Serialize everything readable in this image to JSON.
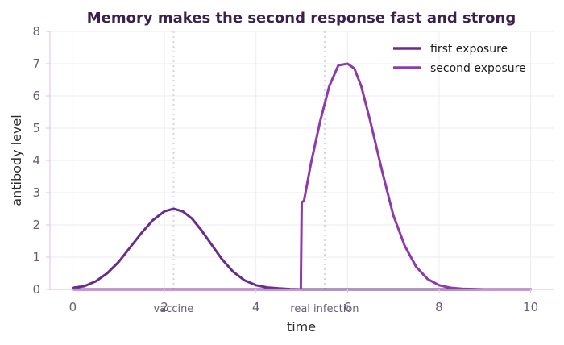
{
  "chart_data": {
    "type": "line",
    "title": "Memory makes the second response fast and strong",
    "xlabel": "time",
    "ylabel": "antibody level",
    "xlim": [
      -0.5,
      10.5
    ],
    "ylim": [
      0,
      8
    ],
    "xticks": [
      0,
      2,
      4,
      6,
      8,
      10
    ],
    "yticks": [
      0,
      1,
      2,
      3,
      4,
      5,
      6,
      7,
      8
    ],
    "grid": true,
    "legend_position": "top-right",
    "annotations": [
      {
        "label": "vaccine",
        "x": 2.2
      },
      {
        "label": "real infection",
        "x": 5.5
      }
    ],
    "series": [
      {
        "name": "first exposure",
        "color": "#6a2c8a",
        "x": [
          0,
          0.25,
          0.5,
          0.75,
          1.0,
          1.25,
          1.5,
          1.75,
          2.0,
          2.2,
          2.4,
          2.6,
          2.8,
          3.0,
          3.25,
          3.5,
          3.75,
          4.0,
          4.25,
          4.5,
          4.75,
          5.0,
          5.5,
          6.0,
          7.0,
          8.0,
          9.0,
          10.0
        ],
        "y": [
          0.05,
          0.1,
          0.25,
          0.5,
          0.85,
          1.3,
          1.75,
          2.15,
          2.42,
          2.5,
          2.42,
          2.2,
          1.85,
          1.45,
          0.95,
          0.55,
          0.28,
          0.13,
          0.06,
          0.03,
          0.01,
          0.0,
          0.0,
          0.0,
          0.0,
          0.0,
          0.0,
          0.0
        ]
      },
      {
        "name": "second exposure",
        "color": "#8e3aab",
        "x": [
          0,
          1,
          2,
          3,
          4,
          4.98,
          5.0,
          5.05,
          5.2,
          5.4,
          5.6,
          5.8,
          6.0,
          6.15,
          6.3,
          6.5,
          6.75,
          7.0,
          7.25,
          7.5,
          7.75,
          8.0,
          8.25,
          8.5,
          9.0,
          10.0
        ],
        "y": [
          0,
          0,
          0,
          0,
          0,
          0,
          2.7,
          2.75,
          3.9,
          5.2,
          6.3,
          6.95,
          7.0,
          6.85,
          6.3,
          5.2,
          3.7,
          2.3,
          1.35,
          0.7,
          0.32,
          0.13,
          0.05,
          0.02,
          0.0,
          0.0
        ]
      }
    ]
  }
}
